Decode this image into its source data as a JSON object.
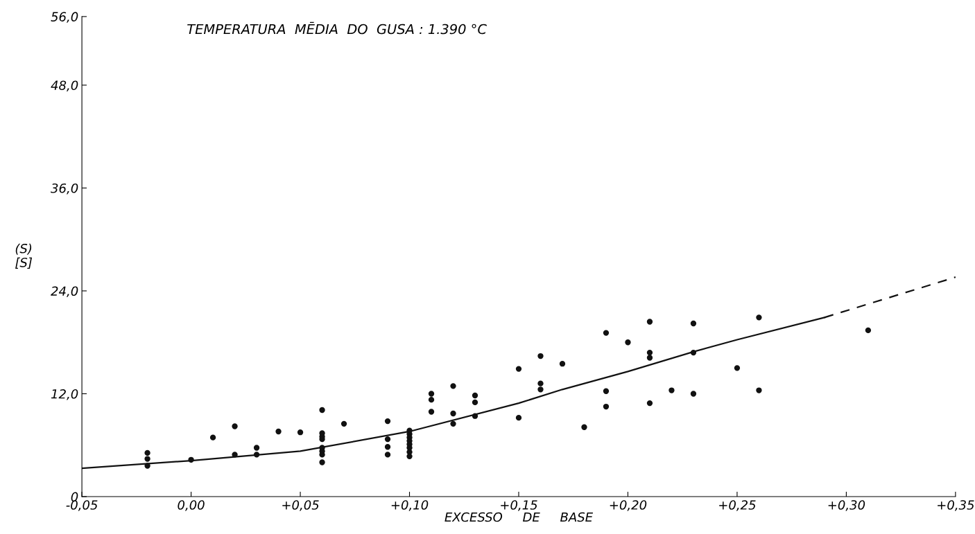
{
  "chart_data": {
    "type": "scatter",
    "title": "TEMPERATURA  MĒDIA  DO  GUSA : 1.390 °C",
    "xlabel": "EXCESSO     DE     BASE",
    "ylabel": "(S)\n[S]",
    "xlim": [
      -0.05,
      0.35
    ],
    "ylim": [
      0,
      56
    ],
    "xticks": [
      {
        "value": -0.05,
        "label": "-0,05"
      },
      {
        "value": 0.0,
        "label": "0,00"
      },
      {
        "value": 0.05,
        "label": "+0,05"
      },
      {
        "value": 0.1,
        "label": "+0,10"
      },
      {
        "value": 0.15,
        "label": "+0,15"
      },
      {
        "value": 0.2,
        "label": "+0,20"
      },
      {
        "value": 0.25,
        "label": "+0,25"
      },
      {
        "value": 0.3,
        "label": "+0,30"
      },
      {
        "value": 0.35,
        "label": "+0,35"
      }
    ],
    "yticks": [
      {
        "value": 0,
        "label": "0"
      },
      {
        "value": 12,
        "label": "12,0"
      },
      {
        "value": 24,
        "label": "24,0"
      },
      {
        "value": 36,
        "label": "36,0"
      },
      {
        "value": 48,
        "label": "48,0"
      },
      {
        "value": 56,
        "label": "56,0"
      }
    ],
    "grid": false,
    "series": [
      {
        "color": "#111111",
        "marker": "circle",
        "x": [
          -0.02,
          -0.02,
          -0.02,
          0.0,
          0.01,
          0.02,
          0.02,
          0.03,
          0.03,
          0.04,
          0.05,
          0.06,
          0.06,
          0.06,
          0.06,
          0.06,
          0.06,
          0.06,
          0.06,
          0.07,
          0.09,
          0.09,
          0.09,
          0.09,
          0.1,
          0.1,
          0.1,
          0.1,
          0.1,
          0.1,
          0.1,
          0.1,
          0.11,
          0.11,
          0.11,
          0.12,
          0.12,
          0.12,
          0.13,
          0.13,
          0.13,
          0.15,
          0.15,
          0.16,
          0.16,
          0.16,
          0.17,
          0.18,
          0.19,
          0.19,
          0.19,
          0.2,
          0.21,
          0.21,
          0.21,
          0.21,
          0.22,
          0.23,
          0.23,
          0.23,
          0.25,
          0.26,
          0.26,
          0.31
        ],
        "values": [
          5.1,
          4.4,
          3.6,
          4.3,
          6.9,
          8.2,
          4.9,
          5.7,
          4.9,
          7.6,
          7.5,
          10.1,
          7.4,
          7.0,
          6.7,
          5.7,
          5.3,
          4.9,
          4.0,
          8.5,
          8.8,
          6.7,
          5.8,
          4.9,
          7.7,
          7.3,
          6.9,
          6.5,
          6.1,
          5.7,
          5.2,
          4.7,
          12.0,
          11.3,
          9.9,
          12.9,
          9.7,
          8.5,
          11.8,
          11.0,
          9.4,
          14.9,
          9.2,
          16.4,
          13.2,
          12.5,
          15.5,
          8.1,
          19.1,
          12.3,
          10.5,
          18.0,
          20.4,
          16.8,
          16.2,
          10.9,
          12.4,
          20.2,
          16.8,
          12.0,
          15.0,
          20.9,
          12.4,
          19.4
        ]
      },
      {
        "type": "line",
        "color": "#111111",
        "line_style": "solid",
        "marker": "none",
        "x": [
          -0.05,
          0.0,
          0.05,
          0.1,
          0.15,
          0.17,
          0.2,
          0.23,
          0.25,
          0.29
        ],
        "values": [
          3.3,
          4.2,
          5.3,
          7.6,
          10.9,
          12.5,
          14.6,
          16.9,
          18.3,
          20.9
        ]
      },
      {
        "type": "line",
        "color": "#111111",
        "line_style": "dashed",
        "marker": "none",
        "x": [
          0.29,
          0.35
        ],
        "values": [
          20.9,
          25.6
        ]
      }
    ]
  }
}
